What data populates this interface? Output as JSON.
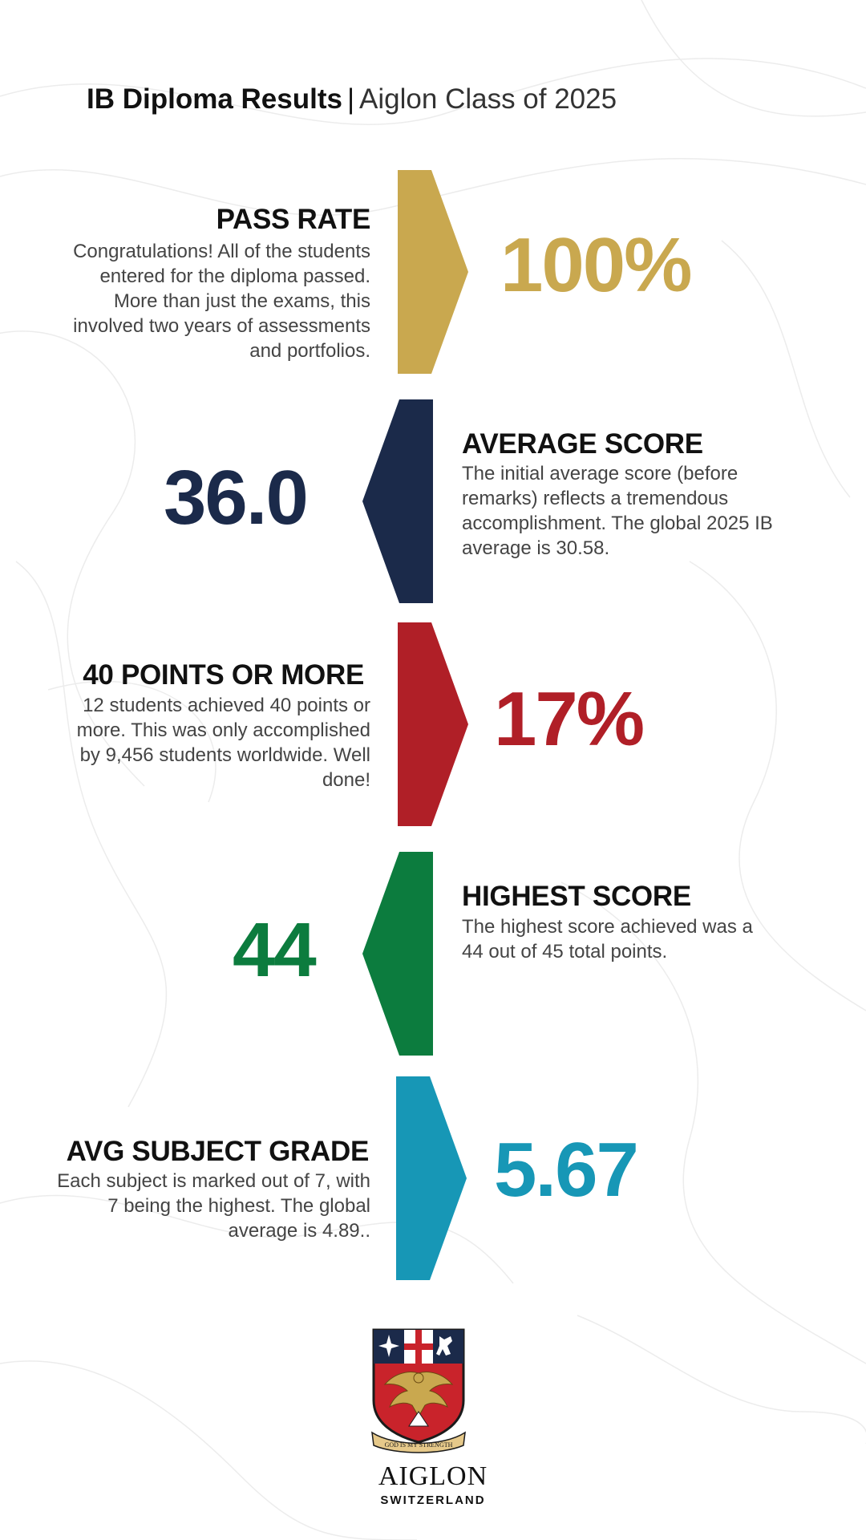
{
  "header": {
    "title_bold": "IB Diploma Results",
    "separator": "|",
    "title_sub": "Aiglon Class of 2025"
  },
  "stats": [
    {
      "heading": "PASS RATE",
      "value": "100%",
      "color": "#c9a84f",
      "direction": "right",
      "description": "Congratulations! All of the students entered for the diploma passed. More than just the exams, this involved two years of assessments and portfolios."
    },
    {
      "heading": "AVERAGE SCORE",
      "value": "36.0",
      "color": "#1b2a4a",
      "direction": "left",
      "description": "The initial average score (before remarks) reflects a tremendous accomplishment. The global 2025 IB average is 30.58."
    },
    {
      "heading": "40 POINTS OR MORE",
      "value": "17%",
      "color": "#b01f27",
      "direction": "right",
      "description": "12 students achieved 40 points or more. This was only accomplished by 9,456 students worldwide. Well done!"
    },
    {
      "heading": "HIGHEST SCORE",
      "value": "44",
      "color": "#0c7c3e",
      "direction": "left",
      "description": "The highest score achieved was a 44 out of 45 total points."
    },
    {
      "heading": "AVG SUBJECT GRADE",
      "value": "5.67",
      "color": "#1797b6",
      "direction": "right",
      "description": "Each subject is marked out of 7, with 7 being the highest. The global average is 4.89.."
    }
  ],
  "brand": {
    "motto": "GOD IS MY STRENGTH",
    "name": "AIGLON",
    "subtitle": "SWITZERLAND"
  }
}
